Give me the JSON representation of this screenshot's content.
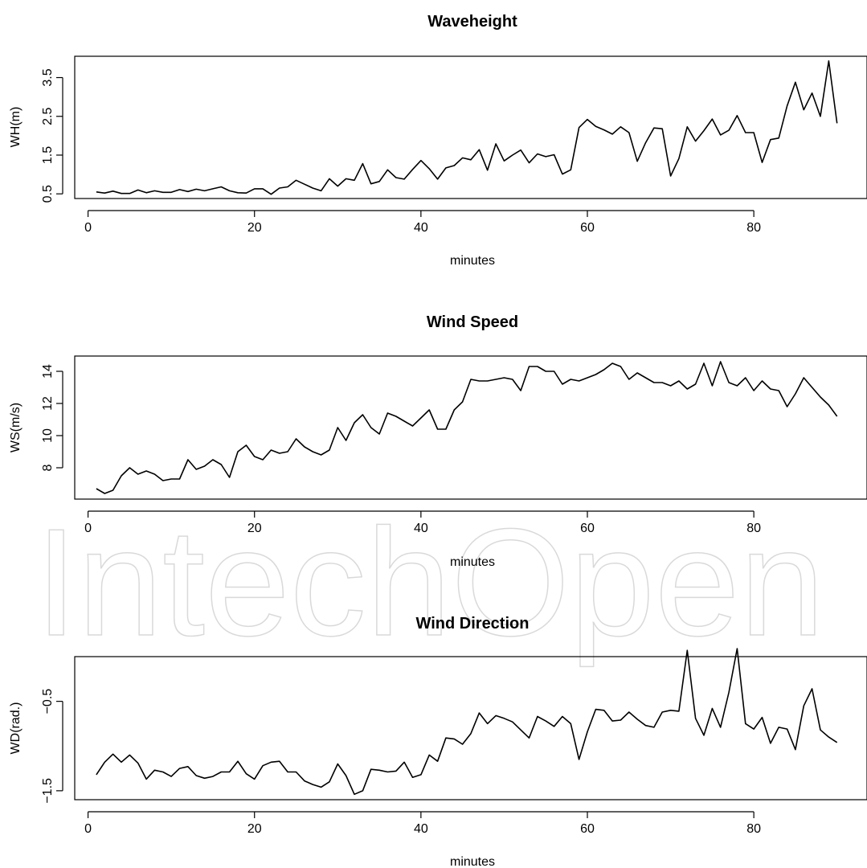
{
  "watermark_text": "IntechOpen",
  "chart_data": [
    {
      "type": "line",
      "title": "Waveheight",
      "xlabel": "minutes",
      "ylabel": "WH(m)",
      "xlim": [
        -1.6,
        93.6
      ],
      "ylim": [
        0.38,
        4.05
      ],
      "xticks": [
        0,
        20,
        40,
        60,
        80
      ],
      "yticks": [
        0.5,
        1.5,
        2.5,
        3.5
      ],
      "ytick_labels": [
        "0.5",
        "1.5",
        "2.5",
        "3.5"
      ],
      "grid": false,
      "series": [
        {
          "x": [
            1,
            2,
            3,
            4,
            5,
            6,
            7,
            8,
            9,
            10,
            11,
            12,
            13,
            14,
            15,
            16,
            17,
            18,
            19,
            20,
            21,
            22,
            23,
            24,
            25,
            26,
            27,
            28,
            29,
            30,
            31,
            32,
            33,
            34,
            35,
            36,
            37,
            38,
            39,
            40,
            41,
            42,
            43,
            44,
            45,
            46,
            47,
            48,
            49,
            50,
            51,
            52,
            53,
            54,
            55,
            56,
            57,
            58,
            59,
            60,
            61,
            62,
            63,
            64,
            65,
            66,
            67,
            68,
            69,
            70,
            71,
            72,
            73,
            74,
            75,
            76,
            77,
            78,
            79,
            80,
            81,
            82,
            83,
            84,
            85,
            86,
            87,
            88,
            89,
            90
          ],
          "y": [
            0.55,
            0.52,
            0.57,
            0.51,
            0.51,
            0.6,
            0.53,
            0.58,
            0.54,
            0.54,
            0.61,
            0.56,
            0.62,
            0.58,
            0.63,
            0.68,
            0.58,
            0.53,
            0.52,
            0.63,
            0.63,
            0.49,
            0.65,
            0.68,
            0.85,
            0.75,
            0.65,
            0.58,
            0.89,
            0.7,
            0.89,
            0.85,
            1.28,
            0.76,
            0.82,
            1.12,
            0.92,
            0.88,
            1.13,
            1.36,
            1.15,
            0.88,
            1.17,
            1.23,
            1.43,
            1.38,
            1.64,
            1.11,
            1.79,
            1.35,
            1.5,
            1.63,
            1.3,
            1.53,
            1.46,
            1.51,
            1.01,
            1.12,
            2.21,
            2.42,
            2.24,
            2.15,
            2.04,
            2.23,
            2.08,
            1.34,
            1.82,
            2.2,
            2.18,
            0.96,
            1.41,
            2.23,
            1.86,
            2.13,
            2.43,
            2.02,
            2.14,
            2.52,
            2.08,
            2.08,
            1.31,
            1.9,
            1.94,
            2.77,
            3.38,
            2.67,
            3.1,
            2.5,
            3.93,
            2.32
          ]
        }
      ]
    },
    {
      "type": "line",
      "title": "Wind Speed",
      "xlabel": "minutes",
      "ylabel": "WS(m/s)",
      "xlim": [
        -1.6,
        93.6
      ],
      "ylim": [
        6.05,
        14.95
      ],
      "xticks": [
        0,
        20,
        40,
        60,
        80
      ],
      "yticks": [
        8,
        10,
        12,
        14
      ],
      "ytick_labels": [
        "8",
        "10",
        "12",
        "14"
      ],
      "grid": false,
      "series": [
        {
          "x": [
            1,
            2,
            3,
            4,
            5,
            6,
            7,
            8,
            9,
            10,
            11,
            12,
            13,
            14,
            15,
            16,
            17,
            18,
            19,
            20,
            21,
            22,
            23,
            24,
            25,
            26,
            27,
            28,
            29,
            30,
            31,
            32,
            33,
            34,
            35,
            36,
            37,
            38,
            39,
            40,
            41,
            42,
            43,
            44,
            45,
            46,
            47,
            48,
            49,
            50,
            51,
            52,
            53,
            54,
            55,
            56,
            57,
            58,
            59,
            60,
            61,
            62,
            63,
            64,
            65,
            66,
            67,
            68,
            69,
            70,
            71,
            72,
            73,
            74,
            75,
            76,
            77,
            78,
            79,
            80,
            81,
            82,
            83,
            84,
            85,
            86,
            87,
            88,
            89,
            90
          ],
          "y": [
            6.7,
            6.4,
            6.6,
            7.5,
            8.0,
            7.6,
            7.8,
            7.6,
            7.2,
            7.3,
            7.3,
            8.5,
            7.9,
            8.1,
            8.5,
            8.2,
            7.4,
            9.0,
            9.4,
            8.7,
            8.5,
            9.1,
            8.9,
            9.0,
            9.8,
            9.3,
            9.0,
            8.8,
            9.1,
            10.5,
            9.7,
            10.8,
            11.3,
            10.5,
            10.1,
            11.4,
            11.2,
            10.9,
            10.6,
            11.1,
            11.6,
            10.4,
            10.4,
            11.6,
            12.1,
            13.5,
            13.4,
            13.4,
            13.5,
            13.6,
            13.5,
            12.8,
            14.3,
            14.3,
            14.0,
            14.0,
            13.2,
            13.5,
            13.4,
            13.6,
            13.8,
            14.1,
            14.5,
            14.3,
            13.5,
            13.9,
            13.6,
            13.3,
            13.3,
            13.1,
            13.4,
            12.9,
            13.2,
            14.5,
            13.1,
            14.6,
            13.3,
            13.1,
            13.6,
            12.8,
            13.4,
            12.9,
            12.8,
            11.8,
            12.6,
            13.6,
            13.0,
            12.4,
            11.9,
            11.2
          ]
        }
      ]
    },
    {
      "type": "line",
      "title": "Wind Direction",
      "xlabel": "minutes",
      "ylabel": "WD(rad.)",
      "xlim": [
        -1.6,
        93.6
      ],
      "ylim": [
        -1.6,
        0.0
      ],
      "xticks": [
        0,
        20,
        40,
        60,
        80
      ],
      "yticks": [
        -1.5,
        -0.5
      ],
      "ytick_labels": [
        "−1.5",
        "−0.5"
      ],
      "grid": false,
      "series": [
        {
          "x": [
            1,
            2,
            3,
            4,
            5,
            6,
            7,
            8,
            9,
            10,
            11,
            12,
            13,
            14,
            15,
            16,
            17,
            18,
            19,
            20,
            21,
            22,
            23,
            24,
            25,
            26,
            27,
            28,
            29,
            30,
            31,
            32,
            33,
            34,
            35,
            36,
            37,
            38,
            39,
            40,
            41,
            42,
            43,
            44,
            45,
            46,
            47,
            48,
            49,
            50,
            51,
            52,
            53,
            54,
            55,
            56,
            57,
            58,
            59,
            60,
            61,
            62,
            63,
            64,
            65,
            66,
            67,
            68,
            69,
            70,
            71,
            72,
            73,
            74,
            75,
            76,
            77,
            78,
            79,
            80,
            81,
            82,
            83,
            84,
            85,
            86,
            87,
            88,
            89,
            90
          ],
          "y": [
            -1.32,
            -1.18,
            -1.09,
            -1.18,
            -1.1,
            -1.19,
            -1.37,
            -1.27,
            -1.29,
            -1.34,
            -1.25,
            -1.23,
            -1.33,
            -1.36,
            -1.34,
            -1.29,
            -1.29,
            -1.17,
            -1.31,
            -1.37,
            -1.22,
            -1.18,
            -1.17,
            -1.29,
            -1.29,
            -1.39,
            -1.43,
            -1.46,
            -1.4,
            -1.2,
            -1.33,
            -1.54,
            -1.5,
            -1.26,
            -1.27,
            -1.29,
            -1.28,
            -1.18,
            -1.35,
            -1.32,
            -1.1,
            -1.17,
            -0.91,
            -0.92,
            -0.98,
            -0.86,
            -0.63,
            -0.75,
            -0.66,
            -0.69,
            -0.73,
            -0.82,
            -0.91,
            -0.67,
            -0.72,
            -0.78,
            -0.67,
            -0.75,
            -1.15,
            -0.84,
            -0.59,
            -0.6,
            -0.72,
            -0.71,
            -0.62,
            -0.7,
            -0.77,
            -0.79,
            -0.62,
            -0.6,
            -0.61,
            0.07,
            -0.69,
            -0.88,
            -0.58,
            -0.79,
            -0.4,
            0.09,
            -0.75,
            -0.81,
            -0.68,
            -0.97,
            -0.79,
            -0.81,
            -1.04,
            -0.55,
            -0.36,
            -0.82,
            -0.9,
            -0.96
          ]
        }
      ]
    }
  ]
}
